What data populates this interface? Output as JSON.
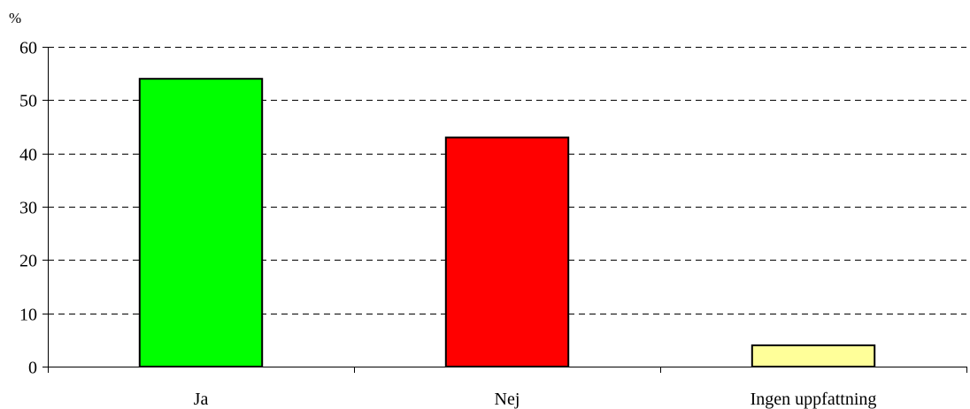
{
  "chart_data": {
    "type": "bar",
    "title": "",
    "xlabel": "",
    "ylabel": "%",
    "categories": [
      "Ja",
      "Nej",
      "Ingen uppfattning"
    ],
    "values": [
      54,
      43,
      4
    ],
    "colors": [
      "#00ff00",
      "#ff0000",
      "#ffff99"
    ],
    "ylim": [
      0,
      60
    ],
    "yticks": [
      0,
      10,
      20,
      30,
      40,
      50,
      60
    ],
    "grid": true,
    "grid_style": "dashed",
    "legend": false
  }
}
